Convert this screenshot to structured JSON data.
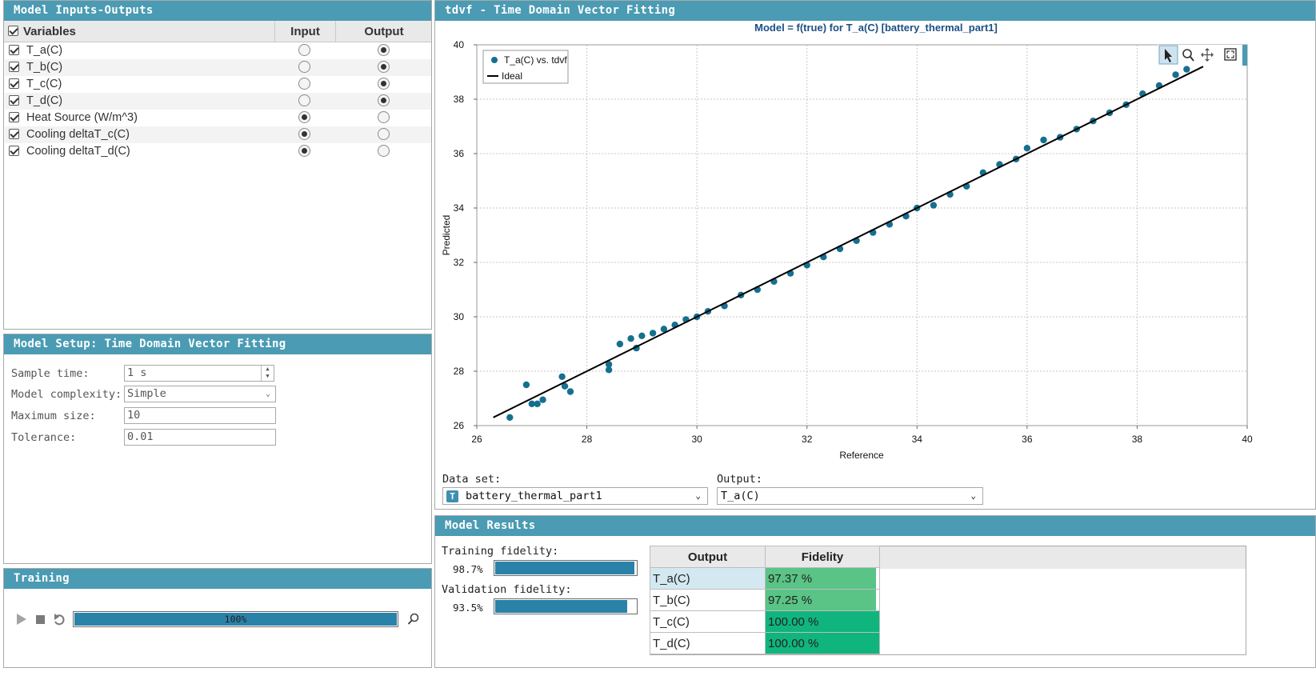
{
  "inputs_outputs": {
    "title": "Model Inputs-Outputs",
    "columns": {
      "variables": "Variables",
      "input": "Input",
      "output": "Output"
    },
    "rows": [
      {
        "name": "T_a(C)",
        "checked": true,
        "role": "output"
      },
      {
        "name": "T_b(C)",
        "checked": true,
        "role": "output"
      },
      {
        "name": "T_c(C)",
        "checked": true,
        "role": "output"
      },
      {
        "name": "T_d(C)",
        "checked": true,
        "role": "output"
      },
      {
        "name": "Heat Source (W/m^3)",
        "checked": true,
        "role": "input"
      },
      {
        "name": "Cooling deltaT_c(C)",
        "checked": true,
        "role": "input"
      },
      {
        "name": "Cooling deltaT_d(C)",
        "checked": true,
        "role": "input"
      }
    ]
  },
  "model_setup": {
    "title": "Model Setup: Time Domain Vector Fitting",
    "sample_time_label": "Sample time:",
    "sample_time_value": "1 s",
    "complexity_label": "Model complexity:",
    "complexity_value": "Simple",
    "max_size_label": "Maximum size:",
    "max_size_value": "10",
    "tolerance_label": "Tolerance:",
    "tolerance_value": "0.01"
  },
  "training": {
    "title": "Training",
    "progress_text": "100%",
    "progress": 1.0
  },
  "plot_panel": {
    "title": "tdvf - Time Domain Vector Fitting",
    "dataset_label": "Data set:",
    "dataset_value": "battery_thermal_part1",
    "output_label": "Output:",
    "output_value": "T_a(C)"
  },
  "chart_data": {
    "type": "scatter",
    "title": "Model = f(true) for T_a(C) [battery_thermal_part1]",
    "xlabel": "Reference",
    "ylabel": "Predicted",
    "xlim": [
      26,
      40
    ],
    "ylim": [
      26,
      40
    ],
    "xticks": [
      "26",
      "28",
      "30",
      "32",
      "34",
      "36",
      "38",
      "40"
    ],
    "yticks": [
      "26",
      "28",
      "30",
      "32",
      "34",
      "36",
      "38",
      "40"
    ],
    "grid": true,
    "legend_position": "top-left",
    "series": [
      {
        "name": "T_a(C) vs. tdvf",
        "kind": "points",
        "color": "#15708f",
        "points": [
          [
            26.6,
            26.3
          ],
          [
            26.9,
            27.5
          ],
          [
            27.0,
            26.8
          ],
          [
            27.1,
            26.8
          ],
          [
            27.2,
            26.95
          ],
          [
            27.55,
            27.8
          ],
          [
            27.6,
            27.45
          ],
          [
            27.7,
            27.25
          ],
          [
            28.4,
            28.05
          ],
          [
            28.4,
            28.25
          ],
          [
            28.6,
            29.0
          ],
          [
            28.8,
            29.2
          ],
          [
            28.9,
            28.85
          ],
          [
            29.0,
            29.3
          ],
          [
            29.2,
            29.4
          ],
          [
            29.4,
            29.55
          ],
          [
            29.6,
            29.7
          ],
          [
            29.8,
            29.9
          ],
          [
            30.0,
            30.0
          ],
          [
            30.2,
            30.2
          ],
          [
            30.5,
            30.4
          ],
          [
            30.8,
            30.8
          ],
          [
            31.1,
            31.0
          ],
          [
            31.4,
            31.3
          ],
          [
            31.7,
            31.6
          ],
          [
            32.0,
            31.9
          ],
          [
            32.3,
            32.2
          ],
          [
            32.6,
            32.5
          ],
          [
            32.9,
            32.8
          ],
          [
            33.2,
            33.1
          ],
          [
            33.5,
            33.4
          ],
          [
            33.8,
            33.7
          ],
          [
            34.0,
            34.0
          ],
          [
            34.3,
            34.1
          ],
          [
            34.6,
            34.5
          ],
          [
            34.9,
            34.8
          ],
          [
            35.2,
            35.3
          ],
          [
            35.5,
            35.6
          ],
          [
            35.8,
            35.8
          ],
          [
            36.0,
            36.2
          ],
          [
            36.3,
            36.5
          ],
          [
            36.6,
            36.6
          ],
          [
            36.9,
            36.9
          ],
          [
            37.2,
            37.2
          ],
          [
            37.5,
            37.5
          ],
          [
            37.8,
            37.8
          ],
          [
            38.1,
            38.2
          ],
          [
            38.4,
            38.5
          ],
          [
            38.7,
            38.9
          ],
          [
            38.9,
            39.1
          ]
        ]
      },
      {
        "name": "Ideal",
        "kind": "line",
        "color": "#000000",
        "points": [
          [
            26.3,
            26.3
          ],
          [
            39.2,
            39.2
          ]
        ]
      }
    ]
  },
  "results": {
    "title": "Model Results",
    "training_label": "Training fidelity:",
    "training_value": "98.7%",
    "training_fraction": 0.987,
    "validation_label": "Validation fidelity:",
    "validation_value": "93.5%",
    "validation_fraction": 0.935,
    "table_headers": {
      "output": "Output",
      "fidelity": "Fidelity"
    },
    "table_rows": [
      {
        "output": "T_a(C)",
        "fidelity": "97.37 %",
        "fraction": 0.9737,
        "color": "#5ac386"
      },
      {
        "output": "T_b(C)",
        "fidelity": "97.25 %",
        "fraction": 0.9725,
        "color": "#5ac386"
      },
      {
        "output": "T_c(C)",
        "fidelity": "100.00 %",
        "fraction": 1.0,
        "color": "#10b57e"
      },
      {
        "output": "T_d(C)",
        "fidelity": "100.00 %",
        "fraction": 1.0,
        "color": "#10b57e"
      }
    ]
  }
}
